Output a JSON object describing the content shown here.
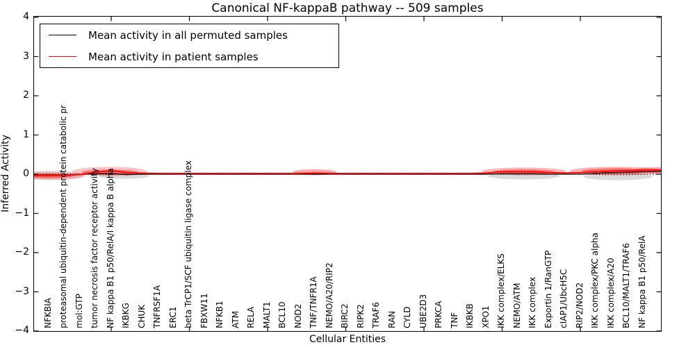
{
  "title": "Canonical NF-kappaB pathway -- 509 samples",
  "axes": {
    "xlabel": "Cellular Entities",
    "ylabel": "Inferred Activity",
    "yticks": [
      "4",
      "3",
      "2",
      "1",
      "0",
      "−1",
      "−2",
      "−3",
      "−4"
    ]
  },
  "legend": {
    "entries": [
      {
        "label": "Mean activity in all permuted samples",
        "color": "#000000"
      },
      {
        "label": "Mean activity in patient samples",
        "color": "#ff0000"
      }
    ]
  },
  "chart_data": {
    "type": "line",
    "title": "Canonical NF-kappaB pathway -- 509 samples",
    "xlabel": "Cellular Entities",
    "ylabel": "Inferred Activity",
    "ylim": [
      -4,
      4
    ],
    "xtick_positions": [
      5,
      10,
      15,
      20,
      25,
      30,
      35
    ],
    "grid": false,
    "legend_position": "upper left",
    "zero_line": {
      "style": "dotted",
      "color": "#000000",
      "y": 0
    },
    "categories": [
      "NFKBIA",
      "proteasomal ubiquitin-dependent protein catabolic pr",
      "mol:GTP",
      "tumor necrosis factor receptor activity",
      "NF kappa B1 p50/RelA/I kappa B alpha",
      "IKBKG",
      "CHUK",
      "TNFRSF1A",
      "ERC1",
      "beta TrCP1/SCF ubiquitin ligase complex",
      "FBXW11",
      "NFKB1",
      "ATM",
      "RELA",
      "MALT1",
      "BCL10",
      "NOD2",
      "TNF/TNFR1A",
      "NEMO/A20/RIP2",
      "BIRC2",
      "RIPK2",
      "TRAF6",
      "RAN",
      "CYLD",
      "UBE2D3",
      "PRKCA",
      "TNF",
      "IKBKB",
      "XPO1",
      "IKK complex/ELKS",
      "NEMO/ATM",
      "IKK complex",
      "Exportin 1/RanGTP",
      "cIAP1/UbcH5C",
      "RIP2/NOD2",
      "IKK complex/PKC alpha",
      "IKK complex/A20",
      "BCL10/MALT1/TRAF6",
      "NF kappa B1 p50/RelA"
    ],
    "series": [
      {
        "name": "Mean activity in all permuted samples",
        "color": "#000000",
        "values": [
          -0.025,
          -0.02,
          -0.005,
          0.01,
          0.02,
          -0.01,
          0,
          0,
          0,
          0,
          0,
          0,
          0,
          0,
          0,
          0,
          0,
          0,
          0,
          0,
          0,
          0,
          0,
          0,
          0,
          0,
          0,
          0,
          0,
          0.01,
          0.01,
          0.01,
          0,
          0,
          0,
          0.02,
          0.04,
          0.05,
          0.06
        ]
      },
      {
        "name": "Mean activity in patient samples",
        "color": "#ff0000",
        "values": [
          -0.03,
          -0.025,
          -0.01,
          0.05,
          0.09,
          0.04,
          0.025,
          0.02,
          0.02,
          0.02,
          0.02,
          0.02,
          0.02,
          0.02,
          0.02,
          0.02,
          0.02,
          0.03,
          0.02,
          0.02,
          0.02,
          0.02,
          0.02,
          0.02,
          0.02,
          0.02,
          0.02,
          0.02,
          0.03,
          0.06,
          0.06,
          0.06,
          0.04,
          0.03,
          0.04,
          0.06,
          0.08,
          0.09,
          0.1
        ]
      }
    ],
    "violins": {
      "gray": [
        {
          "ci": 0.2,
          "rx": 2.1,
          "cv": -0.03,
          "rv": 0.12,
          "o": 0.25
        },
        {
          "ci": 4.8,
          "rx": 1.6,
          "cv": -0.045,
          "rv": 0.075,
          "o": 0.3
        },
        {
          "ci": 30.4,
          "rx": 2.3,
          "cv": -0.05,
          "rv": 0.085,
          "o": 0.3
        },
        {
          "ci": 36.4,
          "rx": 2.2,
          "cv": -0.06,
          "rv": 0.095,
          "o": 0.3
        }
      ],
      "red": [
        {
          "ci": 0.0,
          "rx": 2.3,
          "cv": -0.04,
          "rv": 0.1,
          "o": 0.22
        },
        {
          "ci": 0.0,
          "rx": 1.6,
          "cv": -0.04,
          "rv": 0.055,
          "o": 0.45
        },
        {
          "ci": 3.9,
          "rx": 2.4,
          "cv": 0.07,
          "rv": 0.12,
          "o": 0.22
        },
        {
          "ci": 3.9,
          "rx": 1.8,
          "cv": 0.05,
          "rv": 0.07,
          "o": 0.4
        },
        {
          "ci": 17.0,
          "rx": 1.4,
          "cv": 0.05,
          "rv": 0.075,
          "o": 0.35
        },
        {
          "ci": 30.4,
          "rx": 2.7,
          "cv": 0.07,
          "rv": 0.1,
          "o": 0.28
        },
        {
          "ci": 30.4,
          "rx": 2.0,
          "cv": 0.06,
          "rv": 0.06,
          "o": 0.4
        },
        {
          "ci": 36.3,
          "rx": 3.0,
          "cv": 0.08,
          "rv": 0.11,
          "o": 0.28
        },
        {
          "ci": 36.3,
          "rx": 2.2,
          "cv": 0.08,
          "rv": 0.07,
          "o": 0.4
        },
        {
          "ci": 39.3,
          "rx": 1.8,
          "cv": 0.1,
          "rv": 0.08,
          "o": 0.35
        }
      ]
    }
  }
}
